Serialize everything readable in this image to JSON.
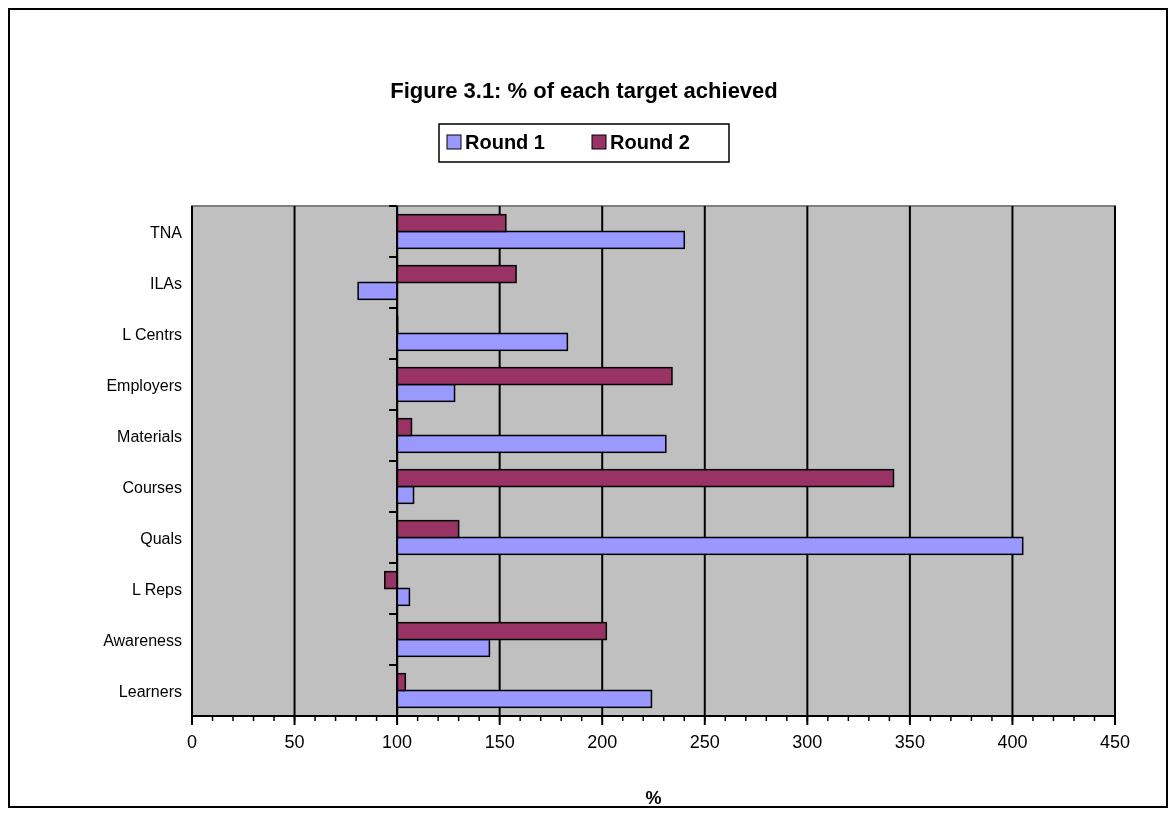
{
  "chart_data": {
    "type": "bar",
    "orientation": "horizontal",
    "title": "Figure 3.1: % of each target achieved",
    "xlabel": "%",
    "categories": [
      "TNA",
      "ILAs",
      "L Centrs",
      "Employers",
      "Materials",
      "Courses",
      "Quals",
      "L Reps",
      "Awareness",
      "Learners"
    ],
    "series": [
      {
        "name": "Round 1",
        "color": "#9999ff",
        "base": [
          100,
          100,
          100,
          100,
          100,
          100,
          100,
          100,
          100,
          100
        ],
        "values": [
          140,
          -19,
          83,
          28,
          131,
          8,
          305,
          6,
          45,
          124
        ]
      },
      {
        "name": "Round 2",
        "color": "#993366",
        "base": [
          100,
          100,
          100,
          100,
          100,
          100,
          100,
          100,
          100,
          100
        ],
        "values": [
          53,
          58,
          0,
          134,
          7,
          242,
          30,
          -6,
          102,
          4
        ]
      }
    ],
    "xlim": [
      0,
      450
    ],
    "xticks": [
      0,
      50,
      100,
      150,
      200,
      250,
      300,
      350,
      400,
      450
    ],
    "grid": "x",
    "legend": "top"
  }
}
